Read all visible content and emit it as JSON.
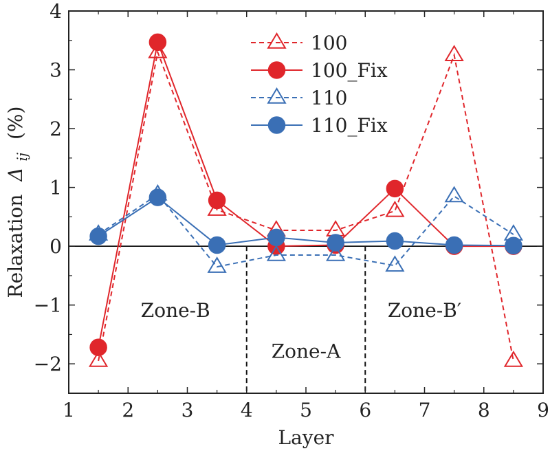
{
  "chart_data": {
    "type": "line",
    "xlabel": "Layer",
    "ylabel": "Relaxation",
    "ylabel_symbol": "Δ",
    "ylabel_subscript": "ij",
    "ylabel_unit": "(%)",
    "xlim": [
      1,
      9
    ],
    "ylim": [
      -2.5,
      4
    ],
    "xticks": [
      1,
      2,
      3,
      4,
      5,
      6,
      7,
      8,
      9
    ],
    "yticks": [
      -2,
      -1,
      0,
      1,
      2,
      3,
      4
    ],
    "ytick_labels": [
      "−2",
      "−1",
      "0",
      "1",
      "2",
      "3",
      "4"
    ],
    "zero_line": true,
    "dividers": [
      4,
      6
    ],
    "zones": [
      {
        "label": "Zone-B",
        "x": 2.8,
        "y": -1.2
      },
      {
        "label": "Zone-A",
        "x": 5.0,
        "y": -1.9
      },
      {
        "label": "Zone-B′",
        "x": 7.0,
        "y": -1.2
      }
    ],
    "legend_position": "top-center",
    "series": [
      {
        "name": "100",
        "color": "#e0262b",
        "dash": true,
        "marker": "triangle-open",
        "x": [
          1.5,
          2.5,
          3.5,
          4.5,
          5.5,
          6.5,
          7.5,
          8.5
        ],
        "values": [
          -1.95,
          3.3,
          0.62,
          0.27,
          0.27,
          0.6,
          3.25,
          -1.95
        ]
      },
      {
        "name": "100_Fix",
        "color": "#e0262b",
        "dash": false,
        "marker": "circle-filled",
        "x": [
          1.5,
          2.5,
          3.5,
          4.5,
          5.5,
          6.5,
          7.5,
          8.5
        ],
        "values": [
          -1.72,
          3.47,
          0.78,
          0.0,
          0.02,
          0.98,
          0.0,
          0.0
        ]
      },
      {
        "name": "110",
        "color": "#3a6fb5",
        "dash": true,
        "marker": "triangle-open",
        "x": [
          1.5,
          2.5,
          3.5,
          4.5,
          5.5,
          6.5,
          7.5,
          8.5
        ],
        "values": [
          0.2,
          0.88,
          -0.35,
          -0.15,
          -0.15,
          -0.33,
          0.85,
          0.2
        ]
      },
      {
        "name": "110_Fix",
        "color": "#3a6fb5",
        "dash": false,
        "marker": "circle-filled",
        "x": [
          1.5,
          2.5,
          3.5,
          4.5,
          5.5,
          6.5,
          7.5,
          8.5
        ],
        "values": [
          0.17,
          0.83,
          0.02,
          0.15,
          0.06,
          0.09,
          0.02,
          0.01
        ]
      }
    ]
  }
}
